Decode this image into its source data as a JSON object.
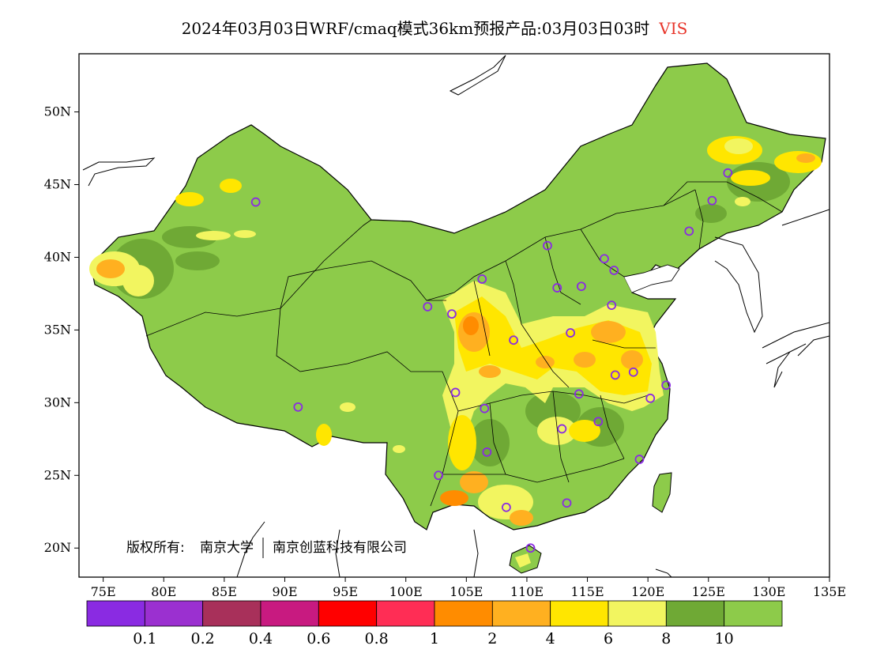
{
  "title": {
    "main": "2024年03月03日WRF/cmaq模式36km预报产品:03月03日03时",
    "variable": "VIS"
  },
  "copyright": {
    "owner_label": "版权所有:",
    "org1": "南京大学",
    "org2": "南京创蓝科技有限公司"
  },
  "map": {
    "lon_ticks": [
      "75E",
      "80E",
      "85E",
      "90E",
      "95E",
      "100E",
      "105E",
      "110E",
      "115E",
      "120E",
      "125E",
      "130E",
      "135E"
    ],
    "lat_ticks": [
      "20N",
      "25N",
      "30N",
      "35N",
      "40N",
      "45N",
      "50N"
    ],
    "lon_range": [
      73,
      135
    ],
    "lat_range": [
      18,
      54
    ]
  },
  "colorbar": {
    "colors": [
      "#8a2be2",
      "#9b30d0",
      "#a8305a",
      "#c81a80",
      "#ff0000",
      "#ff2d55",
      "#ff8c00",
      "#ffb020",
      "#ffe600",
      "#f2f560",
      "#6fa935",
      "#8dcb4a"
    ],
    "labels": [
      "0.1",
      "0.2",
      "0.4",
      "0.6",
      "0.8",
      "1",
      "2",
      "4",
      "6",
      "8",
      "10"
    ]
  },
  "colors": {
    "land": "#8dcb4a",
    "dark_green": "#6fa935",
    "yellow": "#ffe600",
    "light_yellow": "#f2f560",
    "orange": "#ffb020",
    "dark_orange": "#ff8c00",
    "station": "#8a2be2",
    "title_var": "#e8352a"
  },
  "stations": [
    {
      "lon": 87.6,
      "lat": 43.8
    },
    {
      "lon": 91.1,
      "lat": 29.7
    },
    {
      "lon": 101.8,
      "lat": 36.6
    },
    {
      "lon": 103.8,
      "lat": 36.1
    },
    {
      "lon": 106.3,
      "lat": 38.5
    },
    {
      "lon": 108.9,
      "lat": 34.3
    },
    {
      "lon": 104.1,
      "lat": 30.7
    },
    {
      "lon": 106.5,
      "lat": 29.6
    },
    {
      "lon": 106.7,
      "lat": 26.6
    },
    {
      "lon": 102.7,
      "lat": 25.0
    },
    {
      "lon": 108.3,
      "lat": 22.8
    },
    {
      "lon": 110.3,
      "lat": 20.0
    },
    {
      "lon": 113.3,
      "lat": 23.1
    },
    {
      "lon": 112.9,
      "lat": 28.2
    },
    {
      "lon": 115.9,
      "lat": 28.7
    },
    {
      "lon": 114.3,
      "lat": 30.6
    },
    {
      "lon": 117.3,
      "lat": 31.9
    },
    {
      "lon": 118.8,
      "lat": 32.1
    },
    {
      "lon": 120.2,
      "lat": 30.3
    },
    {
      "lon": 121.5,
      "lat": 31.2
    },
    {
      "lon": 119.3,
      "lat": 26.1
    },
    {
      "lon": 113.6,
      "lat": 34.8
    },
    {
      "lon": 117.0,
      "lat": 36.7
    },
    {
      "lon": 114.5,
      "lat": 38.0
    },
    {
      "lon": 112.5,
      "lat": 37.9
    },
    {
      "lon": 111.7,
      "lat": 40.8
    },
    {
      "lon": 116.4,
      "lat": 39.9
    },
    {
      "lon": 117.2,
      "lat": 39.1
    },
    {
      "lon": 123.4,
      "lat": 41.8
    },
    {
      "lon": 125.3,
      "lat": 43.9
    },
    {
      "lon": 126.6,
      "lat": 45.8
    }
  ]
}
